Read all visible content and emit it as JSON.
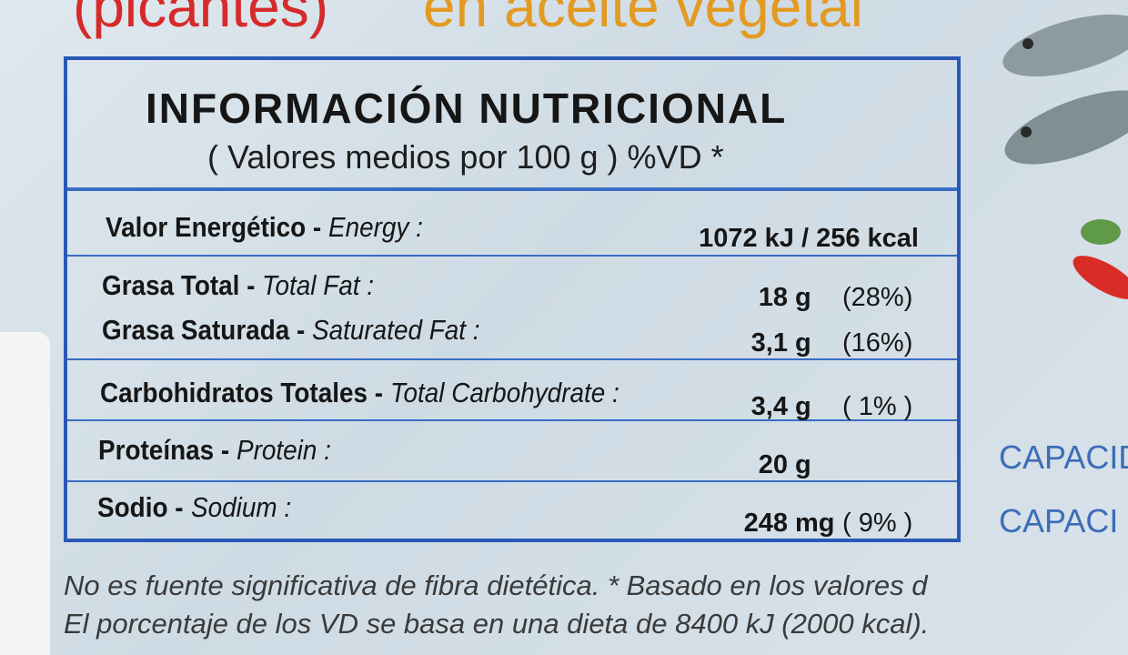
{
  "package": {
    "product_line_1": "(picantes)",
    "product_line_2": "en aceite vegetal"
  },
  "panel": {
    "title": "INFORMACIÓN NUTRICIONAL",
    "subtitle": "( Valores medios por 100 g ) %VD *",
    "rows": [
      {
        "label_es": "Valor Energético -",
        "label_en": "Energy :",
        "amount": "1072 kJ / 256 kcal"
      },
      {
        "label_es": "Grasa Total -",
        "label_en": "Total Fat :",
        "amount": "18",
        "unit": "g",
        "dv": "(28%)"
      },
      {
        "label_es": "Grasa Saturada -",
        "label_en": "Saturated Fat :",
        "amount": "3,1",
        "unit": "g",
        "dv": "(16%)"
      },
      {
        "label_es": "Carbohidratos Totales -",
        "label_en": "Total Carbohydrate :",
        "amount": "3,4",
        "unit": "g",
        "dv": "( 1% )"
      },
      {
        "label_es": "Proteínas -",
        "label_en": "Protein :",
        "amount": "20",
        "unit": "g"
      },
      {
        "label_es": "Sodio -",
        "label_en": "Sodium :",
        "amount": "248",
        "unit": "mg",
        "dv": "( 9% )"
      }
    ]
  },
  "side": {
    "line_1": "CAPACIDA",
    "line_2": "CAPACI"
  },
  "footer": {
    "line_1": "No es fuente significativa de fibra dietética. * Basado en los valores d",
    "line_2": "El porcentaje de los VD se basa en una dieta de 8400 kJ (2000 kcal)."
  }
}
